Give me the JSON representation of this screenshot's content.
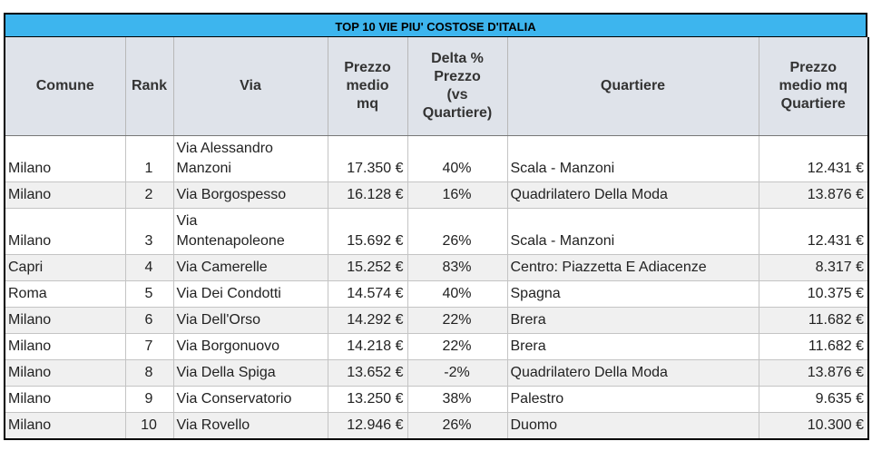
{
  "table": {
    "title": "TOP 10 VIE PIU' COSTOSE D'ITALIA",
    "header": [
      "Comune",
      "Rank",
      "Via",
      "Prezzo\nmedio\nmq",
      "Delta %\nPrezzo\n(vs\nQuartiere)",
      "Quartiere",
      "Prezzo\nmedio mq\nQuartiere"
    ],
    "rows": [
      [
        "Milano",
        "1",
        "Via Alessandro\nManzoni",
        "17.350 €",
        "40%",
        "Scala - Manzoni",
        "12.431 €"
      ],
      [
        "Milano",
        "2",
        "Via Borgospesso",
        "16.128 €",
        "16%",
        "Quadrilatero Della Moda",
        "13.876 €"
      ],
      [
        "Milano",
        "3",
        "Via\nMontenapoleone",
        "15.692 €",
        "26%",
        "Scala - Manzoni",
        "12.431 €"
      ],
      [
        "Capri",
        "4",
        "Via Camerelle",
        "15.252 €",
        "83%",
        "Centro: Piazzetta E Adiacenze",
        "8.317 €"
      ],
      [
        "Roma",
        "5",
        "Via Dei Condotti",
        "14.574 €",
        "40%",
        "Spagna",
        "10.375 €"
      ],
      [
        "Milano",
        "6",
        "Via Dell'Orso",
        "14.292 €",
        "22%",
        "Brera",
        "11.682 €"
      ],
      [
        "Milano",
        "7",
        "Via Borgonuovo",
        "14.218 €",
        "22%",
        "Brera",
        "11.682 €"
      ],
      [
        "Milano",
        "8",
        "Via Della Spiga",
        "13.652 €",
        "-2%",
        "Quadrilatero Della Moda",
        "13.876 €"
      ],
      [
        "Milano",
        "9",
        "Via Conservatorio",
        "13.250 €",
        "38%",
        "Palestro",
        "9.635 €"
      ],
      [
        "Milano",
        "10",
        "Via Rovello",
        "12.946 €",
        "26%",
        "Duomo",
        "10.300 €"
      ]
    ]
  }
}
